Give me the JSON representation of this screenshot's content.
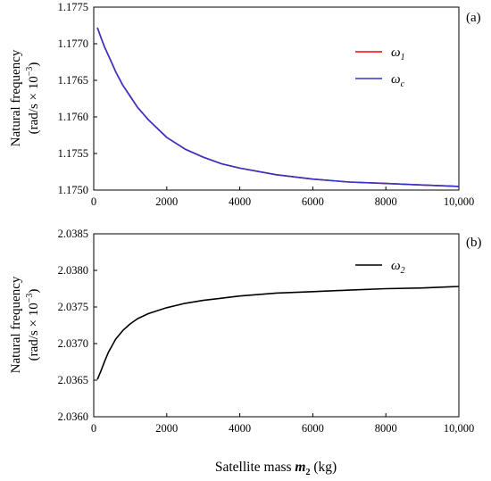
{
  "chart_data": [
    {
      "type": "line",
      "panel_label": "(a)",
      "ylabel_line1": "Natural frequency",
      "ylabel_line2": "(rad/s × 10",
      "ylabel_exp": "−3",
      "ylabel_end": ")",
      "ylim": [
        1.175,
        1.1775
      ],
      "yticks": [
        "1.1750",
        "1.1755",
        "1.1760",
        "1.1765",
        "1.1770",
        "1.1775"
      ],
      "xlim": [
        0,
        10000
      ],
      "xticks": [
        "0",
        "2000",
        "4000",
        "6000",
        "8000",
        "10,000"
      ],
      "grid": false,
      "legend_position": "top-right",
      "series": [
        {
          "name": "ω",
          "subscript": "1",
          "color": "#ff0000",
          "x": [
            100,
            200,
            300,
            400,
            500,
            600,
            800,
            1000,
            1200,
            1500,
            2000,
            2500,
            3000,
            3500,
            4000,
            5000,
            6000,
            7000,
            8000,
            9000,
            10000
          ],
          "y": [
            1.17722,
            1.17708,
            1.17695,
            1.17684,
            1.17673,
            1.17662,
            1.17643,
            1.17628,
            1.17613,
            1.17596,
            1.17572,
            1.17556,
            1.17545,
            1.17536,
            1.1753,
            1.17521,
            1.17515,
            1.17511,
            1.17509,
            1.17507,
            1.17505
          ]
        },
        {
          "name": "ω",
          "subscript": "c",
          "color": "#3333cc",
          "x": [
            100,
            200,
            300,
            400,
            500,
            600,
            800,
            1000,
            1200,
            1500,
            2000,
            2500,
            3000,
            3500,
            4000,
            5000,
            6000,
            7000,
            8000,
            9000,
            10000
          ],
          "y": [
            1.17722,
            1.17708,
            1.17695,
            1.17684,
            1.17673,
            1.17662,
            1.17643,
            1.17628,
            1.17613,
            1.17596,
            1.17572,
            1.17556,
            1.17545,
            1.17536,
            1.1753,
            1.17521,
            1.17515,
            1.17511,
            1.17509,
            1.17507,
            1.17505
          ]
        }
      ]
    },
    {
      "type": "line",
      "panel_label": "(b)",
      "ylabel_line1": "Natural frequency",
      "ylabel_line2": "(rad/s × 10",
      "ylabel_exp": "−3",
      "ylabel_end": ")",
      "ylim": [
        2.036,
        2.0385
      ],
      "yticks": [
        "2.0360",
        "2.0365",
        "2.0370",
        "2.0375",
        "2.0380",
        "2.0385"
      ],
      "xlim": [
        0,
        10000
      ],
      "xticks": [
        "0",
        "2000",
        "4000",
        "6000",
        "8000",
        "10,000"
      ],
      "grid": false,
      "legend_position": "top-right",
      "series": [
        {
          "name": "ω",
          "subscript": "2",
          "color": "#000000",
          "x": [
            100,
            200,
            300,
            400,
            500,
            600,
            800,
            1000,
            1200,
            1500,
            2000,
            2500,
            3000,
            3500,
            4000,
            5000,
            6000,
            7000,
            8000,
            9000,
            10000
          ],
          "y": [
            2.03651,
            2.03663,
            2.03676,
            2.03688,
            2.03697,
            2.03706,
            2.03718,
            2.03727,
            2.03734,
            2.03741,
            2.03749,
            2.03755,
            2.03759,
            2.03762,
            2.03765,
            2.03769,
            2.03771,
            2.03773,
            2.03775,
            2.03776,
            2.03778
          ]
        }
      ]
    }
  ],
  "xlabel_prefix": "Satellite mass ",
  "xlabel_var": "m",
  "xlabel_sub": "2",
  "xlabel_unit": " (kg)"
}
